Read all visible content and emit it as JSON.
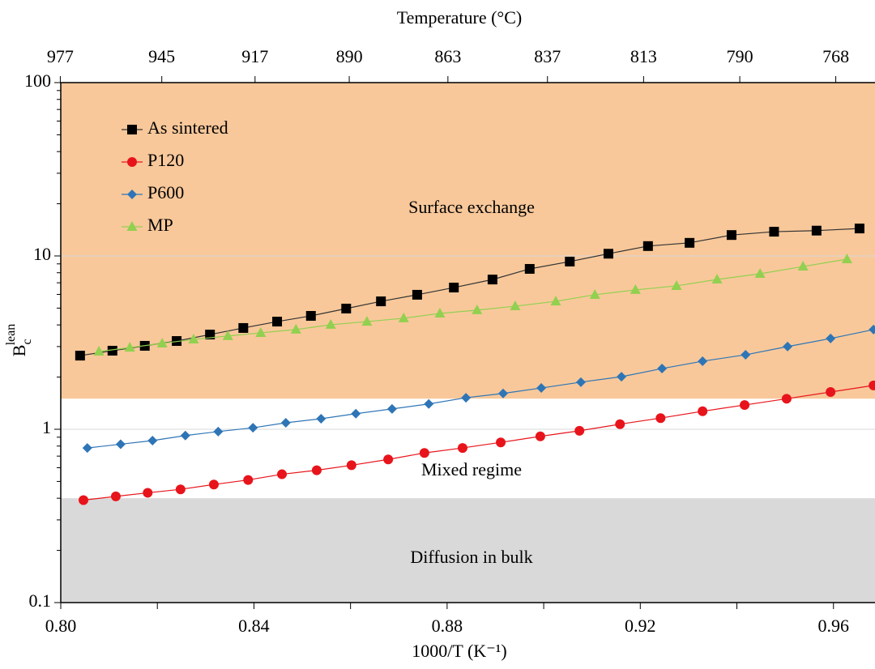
{
  "chart_data": {
    "type": "line",
    "xlabel": "1000/T (K⁻¹)",
    "ylabel": {
      "base": "B",
      "sub": "c",
      "sup": "lean"
    },
    "x2label": "Temperature (°C)",
    "xlim": [
      0.8,
      0.9686
    ],
    "xticks": [
      {
        "value": 0.8,
        "label": "0.80"
      },
      {
        "value": 0.84,
        "label": "0.84"
      },
      {
        "value": 0.88,
        "label": "0.88"
      },
      {
        "value": 0.92,
        "label": "0.92"
      },
      {
        "value": 0.96,
        "label": "0.96"
      }
    ],
    "xminorticks": [
      0.82,
      0.86,
      0.9,
      0.94
    ],
    "x2ticks": [
      977,
      945,
      917,
      890,
      863,
      837,
      813,
      790,
      768
    ],
    "ylim": [
      0.1,
      100
    ],
    "yscale": "log",
    "yticks": [
      0.1,
      1,
      10,
      100
    ],
    "yminorticks": [
      0.2,
      0.3,
      0.4,
      0.5,
      0.6,
      0.7,
      0.8,
      0.9,
      2,
      3,
      4,
      5,
      6,
      7,
      8,
      9,
      20,
      30,
      40,
      50,
      60,
      70,
      80,
      90
    ],
    "grid": true,
    "regions": [
      {
        "label": "Surface exchange",
        "from": 1.5,
        "to": 100,
        "color": "#f8c89a"
      },
      {
        "label": "Mixed regime",
        "from": 0.4,
        "to": 1.5,
        "color": "#ffffff"
      },
      {
        "label": "Diffusion in bulk",
        "from": 0.1,
        "to": 0.4,
        "color": "#d9d9d9"
      }
    ],
    "legend": "top-left",
    "series": [
      {
        "name": "As sintered",
        "color": "#000000",
        "marker": "square",
        "x": [
          0.804,
          0.8107,
          0.8174,
          0.824,
          0.8309,
          0.8378,
          0.8448,
          0.8518,
          0.8591,
          0.8663,
          0.8738,
          0.8814,
          0.8894,
          0.8971,
          0.9054,
          0.9134,
          0.9216,
          0.9302,
          0.9389,
          0.9477,
          0.9565,
          0.9654
        ],
        "values": [
          2.66,
          2.84,
          3.03,
          3.23,
          3.52,
          3.84,
          4.18,
          4.51,
          4.97,
          5.47,
          5.97,
          6.57,
          7.31,
          8.42,
          9.28,
          10.3,
          11.4,
          11.9,
          13.2,
          13.8,
          14.0,
          14.4
        ]
      },
      {
        "name": "P120",
        "color": "#e8141b",
        "marker": "circle",
        "x": [
          0.8047,
          0.8114,
          0.818,
          0.8248,
          0.8317,
          0.8388,
          0.8458,
          0.853,
          0.8602,
          0.8678,
          0.8753,
          0.8832,
          0.8911,
          0.8993,
          0.9074,
          0.9158,
          0.9242,
          0.9329,
          0.9416,
          0.9503,
          0.9594,
          0.9683
        ],
        "values": [
          0.39,
          0.41,
          0.43,
          0.45,
          0.48,
          0.51,
          0.55,
          0.58,
          0.62,
          0.67,
          0.73,
          0.78,
          0.84,
          0.91,
          0.98,
          1.07,
          1.16,
          1.27,
          1.38,
          1.5,
          1.64,
          1.79
        ]
      },
      {
        "name": "P600",
        "color": "#2e75b6",
        "marker": "diamond",
        "x": [
          0.8055,
          0.8124,
          0.819,
          0.8258,
          0.8326,
          0.8398,
          0.8466,
          0.8539,
          0.8611,
          0.8686,
          0.8762,
          0.8839,
          0.8916,
          0.8995,
          0.9077,
          0.9161,
          0.9245,
          0.9329,
          0.9418,
          0.9505,
          0.9594,
          0.9683
        ],
        "values": [
          0.78,
          0.82,
          0.86,
          0.92,
          0.97,
          1.02,
          1.09,
          1.15,
          1.23,
          1.31,
          1.4,
          1.52,
          1.61,
          1.73,
          1.87,
          2.01,
          2.24,
          2.47,
          2.69,
          3.0,
          3.34,
          3.76
        ]
      },
      {
        "name": "MP",
        "color": "#92d050",
        "marker": "triangle",
        "x": [
          0.8079,
          0.8143,
          0.821,
          0.8275,
          0.8346,
          0.8414,
          0.8487,
          0.8559,
          0.8634,
          0.871,
          0.8785,
          0.8862,
          0.8941,
          0.9025,
          0.9106,
          0.919,
          0.9275,
          0.9359,
          0.9448,
          0.9537,
          0.9628
        ],
        "values": [
          2.81,
          2.96,
          3.13,
          3.3,
          3.45,
          3.6,
          3.76,
          4.01,
          4.18,
          4.37,
          4.66,
          4.87,
          5.13,
          5.47,
          5.97,
          6.37,
          6.72,
          7.32,
          7.89,
          8.69,
          9.58
        ]
      }
    ]
  }
}
